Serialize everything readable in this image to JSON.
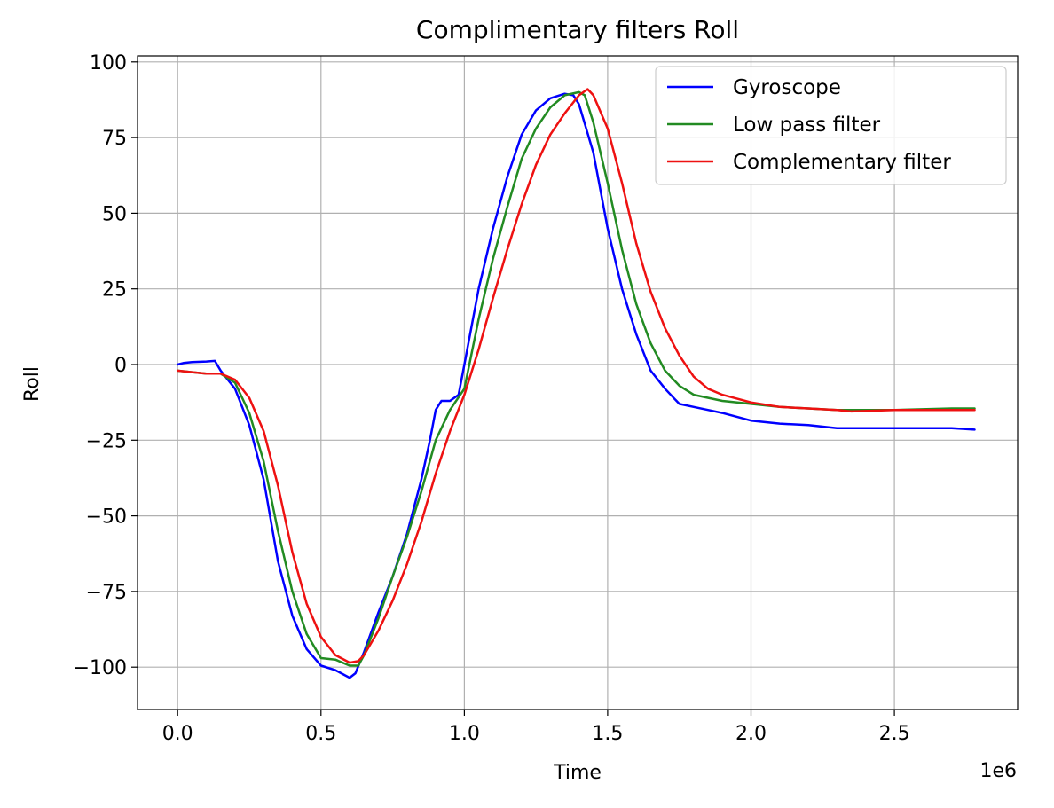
{
  "chart_data": {
    "type": "line",
    "title": "Complimentary filters Roll",
    "xlabel": "Time",
    "ylabel": "Roll",
    "x_offset_label": "1e6",
    "xlim": [
      -0.14,
      2.93
    ],
    "ylim": [
      -114,
      102
    ],
    "xticks": [
      0.0,
      0.5,
      1.0,
      1.5,
      2.0,
      2.5
    ],
    "xtick_labels": [
      "0.0",
      "0.5",
      "1.0",
      "1.5",
      "2.0",
      "2.5"
    ],
    "yticks": [
      100,
      75,
      50,
      25,
      0,
      -25,
      -50,
      -75,
      -100
    ],
    "ytick_labels": [
      "100",
      "75",
      "50",
      "25",
      "0",
      "−25",
      "−50",
      "−75",
      "−100"
    ],
    "grid": true,
    "legend_position": "upper right",
    "series": [
      {
        "name": "Gyroscope",
        "color": "#0000ff",
        "points": [
          [
            0.0,
            0
          ],
          [
            0.02,
            0.5
          ],
          [
            0.05,
            0.8
          ],
          [
            0.1,
            1
          ],
          [
            0.13,
            1.2
          ],
          [
            0.15,
            -2
          ],
          [
            0.2,
            -8
          ],
          [
            0.25,
            -20
          ],
          [
            0.3,
            -38
          ],
          [
            0.35,
            -65
          ],
          [
            0.4,
            -83
          ],
          [
            0.45,
            -94
          ],
          [
            0.5,
            -99.5
          ],
          [
            0.55,
            -101
          ],
          [
            0.6,
            -103.5
          ],
          [
            0.62,
            -102
          ],
          [
            0.65,
            -95
          ],
          [
            0.7,
            -82
          ],
          [
            0.75,
            -70
          ],
          [
            0.8,
            -56
          ],
          [
            0.85,
            -38
          ],
          [
            0.88,
            -25
          ],
          [
            0.9,
            -15
          ],
          [
            0.92,
            -12
          ],
          [
            0.95,
            -12
          ],
          [
            0.98,
            -10
          ],
          [
            1.0,
            0
          ],
          [
            1.05,
            25
          ],
          [
            1.1,
            45
          ],
          [
            1.15,
            62
          ],
          [
            1.2,
            76
          ],
          [
            1.25,
            84
          ],
          [
            1.3,
            88
          ],
          [
            1.35,
            89.5
          ],
          [
            1.38,
            89
          ],
          [
            1.4,
            86
          ],
          [
            1.45,
            70
          ],
          [
            1.5,
            45
          ],
          [
            1.55,
            25
          ],
          [
            1.6,
            10
          ],
          [
            1.65,
            -2
          ],
          [
            1.7,
            -8
          ],
          [
            1.75,
            -13
          ],
          [
            1.8,
            -14
          ],
          [
            1.85,
            -15
          ],
          [
            1.9,
            -16
          ],
          [
            2.0,
            -18.5
          ],
          [
            2.1,
            -19.5
          ],
          [
            2.2,
            -20
          ],
          [
            2.3,
            -21
          ],
          [
            2.5,
            -21
          ],
          [
            2.7,
            -21
          ],
          [
            2.78,
            -21.5
          ]
        ]
      },
      {
        "name": "Low pass filter",
        "color": "#228b22",
        "points": [
          [
            0.0,
            -2
          ],
          [
            0.05,
            -2.5
          ],
          [
            0.1,
            -3
          ],
          [
            0.15,
            -3
          ],
          [
            0.2,
            -6
          ],
          [
            0.25,
            -16
          ],
          [
            0.3,
            -32
          ],
          [
            0.35,
            -55
          ],
          [
            0.4,
            -75
          ],
          [
            0.45,
            -89
          ],
          [
            0.5,
            -97
          ],
          [
            0.55,
            -97.5
          ],
          [
            0.6,
            -99.5
          ],
          [
            0.63,
            -99.5
          ],
          [
            0.65,
            -96
          ],
          [
            0.7,
            -84
          ],
          [
            0.75,
            -70
          ],
          [
            0.8,
            -57
          ],
          [
            0.85,
            -42
          ],
          [
            0.9,
            -25
          ],
          [
            0.95,
            -15
          ],
          [
            1.0,
            -8
          ],
          [
            1.05,
            15
          ],
          [
            1.1,
            35
          ],
          [
            1.15,
            52
          ],
          [
            1.2,
            68
          ],
          [
            1.25,
            78
          ],
          [
            1.3,
            85
          ],
          [
            1.35,
            89
          ],
          [
            1.4,
            90
          ],
          [
            1.42,
            89
          ],
          [
            1.45,
            80
          ],
          [
            1.5,
            60
          ],
          [
            1.55,
            38
          ],
          [
            1.6,
            20
          ],
          [
            1.65,
            7
          ],
          [
            1.7,
            -2
          ],
          [
            1.75,
            -7
          ],
          [
            1.8,
            -10
          ],
          [
            1.9,
            -12
          ],
          [
            2.0,
            -13
          ],
          [
            2.1,
            -14
          ],
          [
            2.2,
            -14.5
          ],
          [
            2.3,
            -15
          ],
          [
            2.5,
            -15
          ],
          [
            2.7,
            -14.5
          ],
          [
            2.78,
            -14.5
          ]
        ]
      },
      {
        "name": "Complementary filter",
        "color": "#ee1111",
        "points": [
          [
            0.0,
            -2
          ],
          [
            0.05,
            -2.5
          ],
          [
            0.1,
            -3
          ],
          [
            0.15,
            -3
          ],
          [
            0.2,
            -5
          ],
          [
            0.25,
            -11
          ],
          [
            0.3,
            -22
          ],
          [
            0.35,
            -40
          ],
          [
            0.4,
            -62
          ],
          [
            0.45,
            -79
          ],
          [
            0.5,
            -90
          ],
          [
            0.55,
            -96
          ],
          [
            0.6,
            -98.5
          ],
          [
            0.63,
            -98
          ],
          [
            0.65,
            -96
          ],
          [
            0.7,
            -88
          ],
          [
            0.75,
            -78
          ],
          [
            0.8,
            -66
          ],
          [
            0.85,
            -52
          ],
          [
            0.9,
            -36
          ],
          [
            0.95,
            -22
          ],
          [
            1.0,
            -10
          ],
          [
            1.05,
            5
          ],
          [
            1.1,
            22
          ],
          [
            1.15,
            38
          ],
          [
            1.2,
            53
          ],
          [
            1.25,
            66
          ],
          [
            1.3,
            76
          ],
          [
            1.35,
            83
          ],
          [
            1.4,
            89
          ],
          [
            1.43,
            91
          ],
          [
            1.45,
            89
          ],
          [
            1.5,
            78
          ],
          [
            1.55,
            60
          ],
          [
            1.6,
            40
          ],
          [
            1.65,
            24
          ],
          [
            1.7,
            12
          ],
          [
            1.75,
            3
          ],
          [
            1.8,
            -4
          ],
          [
            1.85,
            -8
          ],
          [
            1.9,
            -10
          ],
          [
            2.0,
            -12.5
          ],
          [
            2.1,
            -14
          ],
          [
            2.2,
            -14.5
          ],
          [
            2.3,
            -15
          ],
          [
            2.35,
            -15.5
          ],
          [
            2.5,
            -15
          ],
          [
            2.7,
            -15
          ],
          [
            2.78,
            -15
          ]
        ]
      }
    ]
  }
}
